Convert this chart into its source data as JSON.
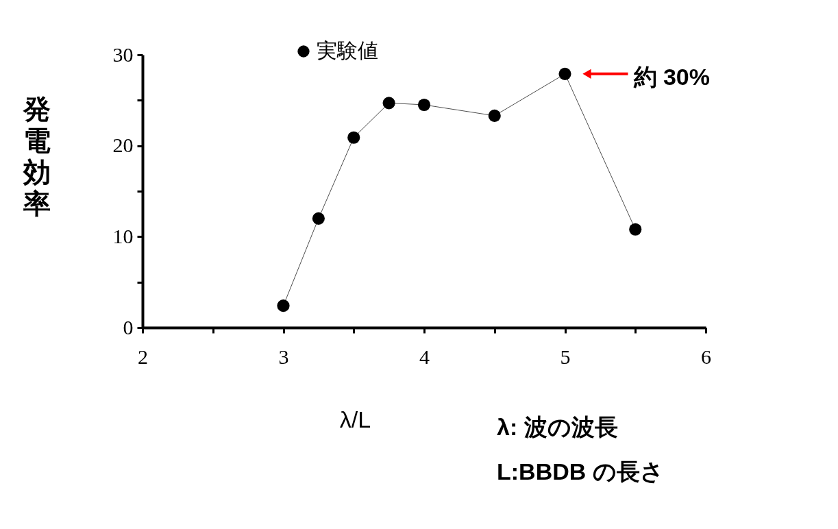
{
  "chart_data": {
    "type": "line",
    "xlabel": "λ/L",
    "ylabel": "発電効率",
    "x": [
      3,
      3.25,
      3.5,
      3.75,
      4,
      4.5,
      5,
      5.5
    ],
    "series": [
      {
        "name": "実験値",
        "color": "#000000",
        "values": [
          2.4,
          12.0,
          20.9,
          24.7,
          24.5,
          23.3,
          27.9,
          10.8
        ]
      }
    ],
    "xlim": [
      2,
      6
    ],
    "xticks": [
      2,
      {
        "value": 2.5,
        "label": null
      },
      3,
      {
        "value": 3.5,
        "label": null
      },
      4,
      {
        "value": 4.5,
        "label": null
      },
      5,
      {
        "value": 5.5,
        "label": null
      },
      6
    ],
    "ylim": [
      0,
      30
    ],
    "yticks": [
      0,
      {
        "value": 5,
        "label": null
      },
      10,
      {
        "value": 15,
        "label": null
      },
      20,
      {
        "value": 25,
        "label": null
      },
      30
    ],
    "annotations": [
      {
        "text": "約 30%",
        "x": 5,
        "y": 27.9
      },
      "λ: 波の波長",
      "L:BBDB の長さ"
    ],
    "marker": "circle",
    "legend": "top",
    "grid": false
  }
}
